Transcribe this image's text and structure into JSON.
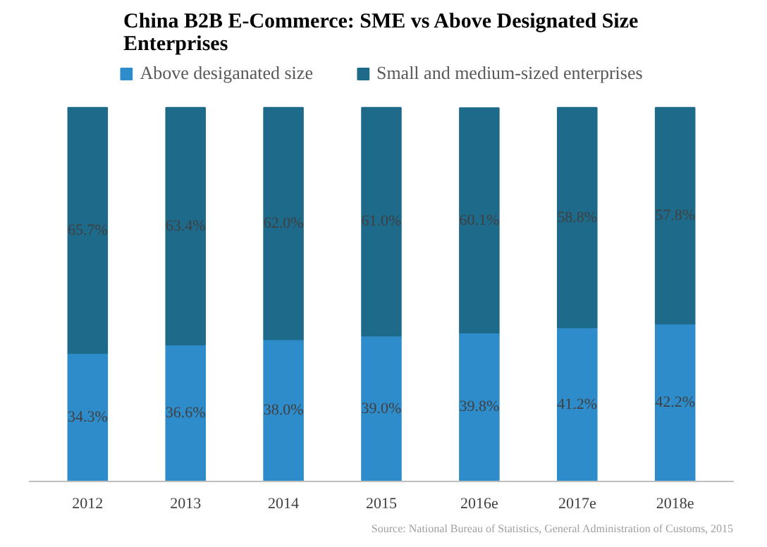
{
  "chart_data": {
    "type": "bar",
    "stacked": true,
    "title": "China B2B E-Commerce: SME vs Above Designated Size Enterprises",
    "categories": [
      "2012",
      "2013",
      "2014",
      "2015",
      "2016e",
      "2017e",
      "2018e"
    ],
    "series": [
      {
        "name": "Above desiganated size",
        "color": "#2e8ccb",
        "values": [
          34.3,
          36.6,
          38.0,
          39.0,
          39.8,
          41.2,
          42.2
        ],
        "value_labels": [
          "34.3%",
          "36.6%",
          "38.0%",
          "39.0%",
          "39.8%",
          "41.2%",
          "42.2%"
        ]
      },
      {
        "name": "Small and medium-sized enterprises",
        "color": "#1e6a8a",
        "values": [
          65.7,
          63.4,
          62.0,
          61.0,
          60.1,
          58.8,
          57.8
        ],
        "value_labels": [
          "65.7%",
          "63.4%",
          "62.0%",
          "61.0%",
          "60.1%",
          "58.8%",
          "57.8%"
        ]
      }
    ],
    "legend": "top",
    "grid": false,
    "annotations": [
      "Source: National Bureau of Statistics, General Administration of Customs, 2015"
    ]
  }
}
